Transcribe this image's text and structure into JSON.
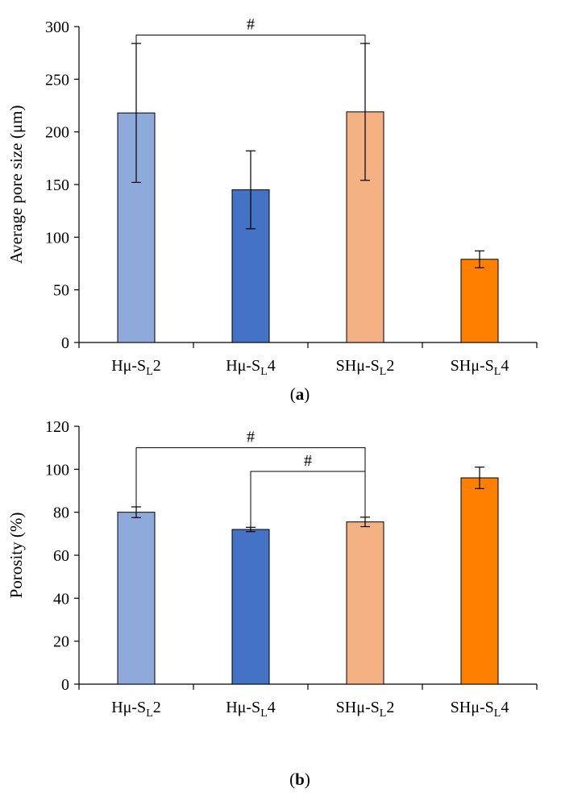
{
  "chart_data": [
    {
      "type": "bar",
      "panel_label": "(a)",
      "ylabel": "Average pore size (μm)",
      "ylim": [
        0,
        300
      ],
      "yticks": [
        0,
        50,
        100,
        150,
        200,
        250,
        300
      ],
      "categories": [
        {
          "prefix": "Hμ-S",
          "sub": "L",
          "suffix": "2"
        },
        {
          "prefix": "Hμ-S",
          "sub": "L",
          "suffix": "4"
        },
        {
          "prefix": "SHμ-S",
          "sub": "L",
          "suffix": "2"
        },
        {
          "prefix": "SHμ-S",
          "sub": "L",
          "suffix": "4"
        }
      ],
      "values": [
        218,
        145,
        219,
        79
      ],
      "errors": [
        66,
        37,
        65,
        8
      ],
      "colors": [
        "#8eaadb",
        "#4472c4",
        "#f4b183",
        "#ff8000"
      ],
      "significance": [
        {
          "from": 0,
          "to": 2,
          "label": "#",
          "level": 292
        }
      ]
    },
    {
      "type": "bar",
      "panel_label": "(b)",
      "ylabel": "Porosity (%)",
      "ylim": [
        0,
        120
      ],
      "yticks": [
        0,
        20,
        40,
        60,
        80,
        100,
        120
      ],
      "categories": [
        {
          "prefix": "Hμ-S",
          "sub": "L",
          "suffix": "2"
        },
        {
          "prefix": "Hμ-S",
          "sub": "L",
          "suffix": "4"
        },
        {
          "prefix": "SHμ-S",
          "sub": "L",
          "suffix": "2"
        },
        {
          "prefix": "SHμ-S",
          "sub": "L",
          "suffix": "4"
        }
      ],
      "values": [
        80,
        72,
        75.5,
        96
      ],
      "errors": [
        2.5,
        1,
        2.2,
        5
      ],
      "colors": [
        "#8eaadb",
        "#4472c4",
        "#f4b183",
        "#ff8000"
      ],
      "significance": [
        {
          "from": 0,
          "to": 2,
          "label": "#",
          "level": 110
        },
        {
          "from": 1,
          "to": 2,
          "label": "#",
          "level": 99
        }
      ]
    }
  ]
}
